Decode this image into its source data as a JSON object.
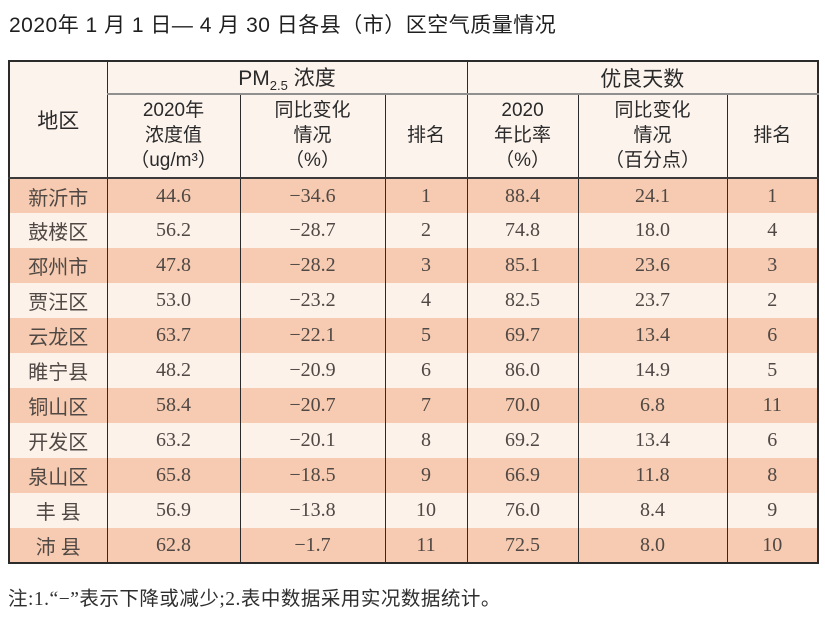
{
  "title": "2020年 1 月 1 日— 4 月 30 日各县（市）区空气质量情况",
  "table": {
    "corner_header": "地区",
    "groups": [
      {
        "prefix": "PM",
        "sub": "2.5",
        "suffix": " 浓度"
      },
      {
        "label": "优良天数"
      }
    ],
    "subheaders": [
      "2020年\n浓度值\n（ug/m³）",
      "同比变化\n情况\n（%）",
      "排名",
      "2020\n年比率\n（%）",
      "同比变化\n情况\n（百分点）",
      "排名"
    ],
    "rows": [
      {
        "region": "新沂市",
        "pm_value": "44.6",
        "pm_change": "−34.6",
        "pm_rank": "1",
        "good_ratio": "88.4",
        "good_change": "24.1",
        "good_rank": "1"
      },
      {
        "region": "鼓楼区",
        "pm_value": "56.2",
        "pm_change": "−28.7",
        "pm_rank": "2",
        "good_ratio": "74.8",
        "good_change": "18.0",
        "good_rank": "4"
      },
      {
        "region": "邳州市",
        "pm_value": "47.8",
        "pm_change": "−28.2",
        "pm_rank": "3",
        "good_ratio": "85.1",
        "good_change": "23.6",
        "good_rank": "3"
      },
      {
        "region": "贾汪区",
        "pm_value": "53.0",
        "pm_change": "−23.2",
        "pm_rank": "4",
        "good_ratio": "82.5",
        "good_change": "23.7",
        "good_rank": "2"
      },
      {
        "region": "云龙区",
        "pm_value": "63.7",
        "pm_change": "−22.1",
        "pm_rank": "5",
        "good_ratio": "69.7",
        "good_change": "13.4",
        "good_rank": "6"
      },
      {
        "region": "睢宁县",
        "pm_value": "48.2",
        "pm_change": "−20.9",
        "pm_rank": "6",
        "good_ratio": "86.0",
        "good_change": "14.9",
        "good_rank": "5"
      },
      {
        "region": "铜山区",
        "pm_value": "58.4",
        "pm_change": "−20.7",
        "pm_rank": "7",
        "good_ratio": "70.0",
        "good_change": "6.8",
        "good_rank": "11"
      },
      {
        "region": "开发区",
        "pm_value": "63.2",
        "pm_change": "−20.1",
        "pm_rank": "8",
        "good_ratio": "69.2",
        "good_change": "13.4",
        "good_rank": "6"
      },
      {
        "region": "泉山区",
        "pm_value": "65.8",
        "pm_change": "−18.5",
        "pm_rank": "9",
        "good_ratio": "66.9",
        "good_change": "11.8",
        "good_rank": "8"
      },
      {
        "region": "丰 县",
        "pm_value": "56.9",
        "pm_change": "−13.8",
        "pm_rank": "10",
        "good_ratio": "76.0",
        "good_change": "8.4",
        "good_rank": "9"
      },
      {
        "region": "沛 县",
        "pm_value": "62.8",
        "pm_change": "−1.7",
        "pm_rank": "11",
        "good_ratio": "72.5",
        "good_change": "8.0",
        "good_rank": "10"
      }
    ]
  },
  "note": "注:1.“−”表示下降或减少;2.表中数据采用实况数据统计。",
  "colors": {
    "row_salmon": "#f7cbb1",
    "row_light": "#fdf2ea",
    "header_bg": "#fcf3ed",
    "border_dark": "#2b2b2b",
    "group_underline": "#8f8f8f"
  }
}
